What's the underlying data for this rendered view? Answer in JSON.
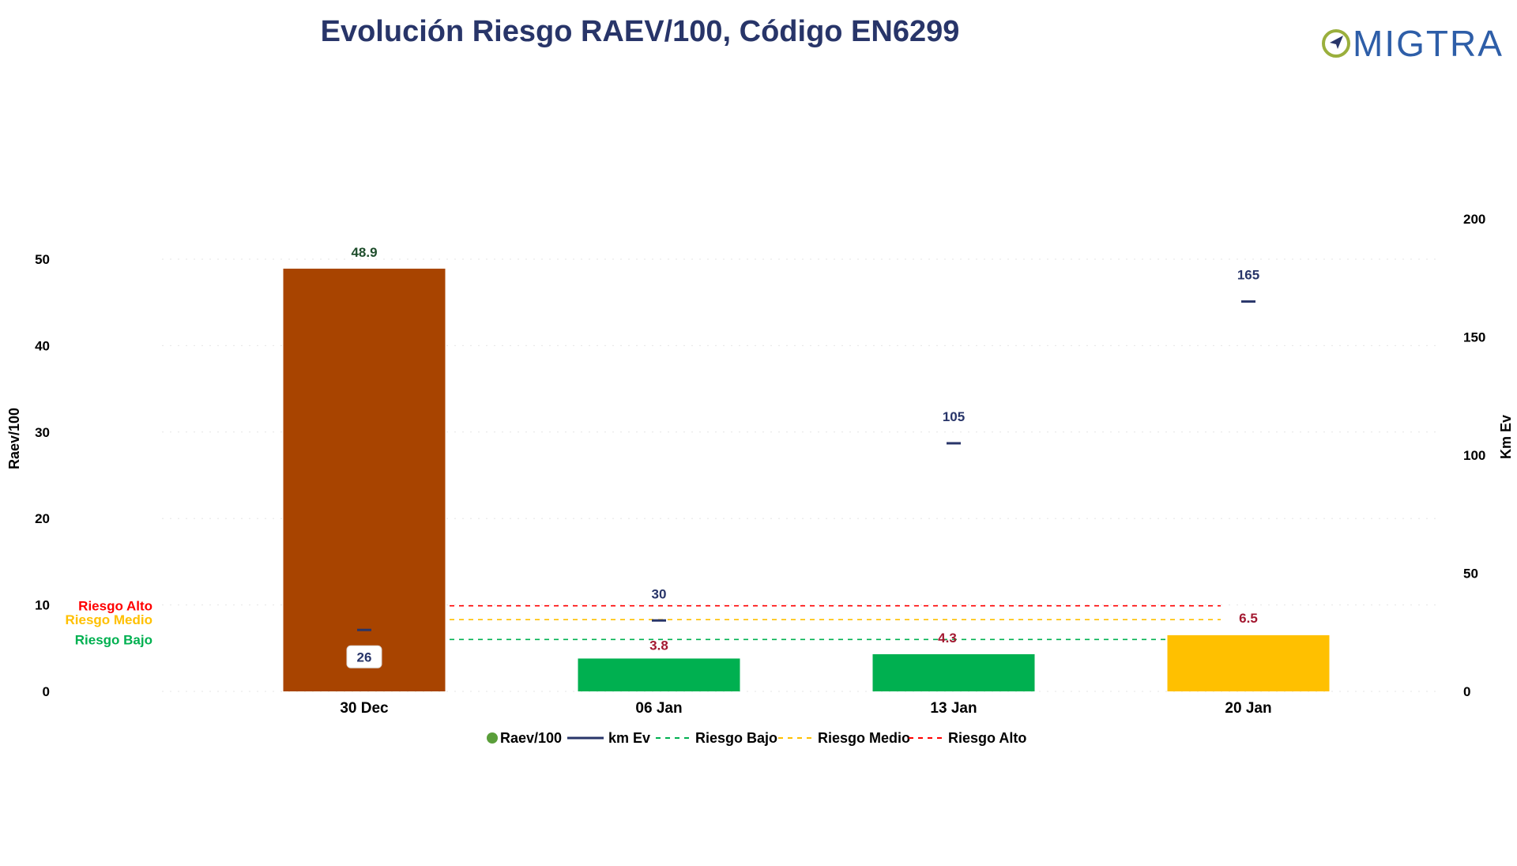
{
  "logo": {
    "text": "MIGTRA",
    "colors": {
      "mark": "#9aaf3c",
      "text": "#2e5ea8"
    }
  },
  "colors": {
    "title": "#283569",
    "km_line": "#283569",
    "km_label": "#283569",
    "raev_label_high": "#1e4d2b",
    "raev_label_low": "#a31830",
    "riesgo_bajo": "#00b050",
    "riesgo_medio": "#ffc000",
    "riesgo_alto": "#ff0000",
    "legend_raev_dot": "#5a9e3a"
  },
  "chart_data": {
    "type": "bar",
    "title": "Evolución Riesgo RAEV/100, Código EN6299",
    "categories": [
      "30 Dec",
      "06 Jan",
      "13 Jan",
      "20 Jan"
    ],
    "ylabel": "Raev/100",
    "y2label": "Km Ev",
    "ylim": [
      0,
      50
    ],
    "y2lim": [
      0,
      200
    ],
    "yticks": [
      "0",
      "10",
      "20",
      "30",
      "40",
      "50"
    ],
    "y2ticks": [
      "0",
      "50",
      "100",
      "150",
      "200"
    ],
    "grid": true,
    "legend_position": "bottom-center",
    "series": [
      {
        "name": "Raev/100",
        "kind": "bar",
        "values": [
          48.9,
          3.8,
          4.3,
          6.5
        ],
        "labels": [
          "48.9",
          "3.8",
          "4.3",
          "6.5"
        ],
        "colors": [
          "#a84400",
          "#00b050",
          "#00b050",
          "#ffc000"
        ]
      },
      {
        "name": "km Ev",
        "kind": "line-marker",
        "axis": "right",
        "values": [
          26,
          30,
          105,
          165
        ],
        "labels": [
          "26",
          "30",
          "105",
          "165"
        ]
      }
    ],
    "thresholds": [
      {
        "name": "Riesgo Bajo",
        "side_label": "Riesgo Bajo",
        "value": 6.0,
        "color": "#00b050"
      },
      {
        "name": "Riesgo Medio",
        "side_label": "Riesgo Medio",
        "value": 8.3,
        "color": "#ffc000"
      },
      {
        "name": "Riesgo Alto",
        "side_label": "Riesgo Alto",
        "value": 9.9,
        "color": "#ff0000"
      }
    ],
    "legend": [
      "Raev/100",
      "km Ev",
      "Riesgo Bajo",
      "Riesgo Medio",
      "Riesgo Alto"
    ]
  }
}
